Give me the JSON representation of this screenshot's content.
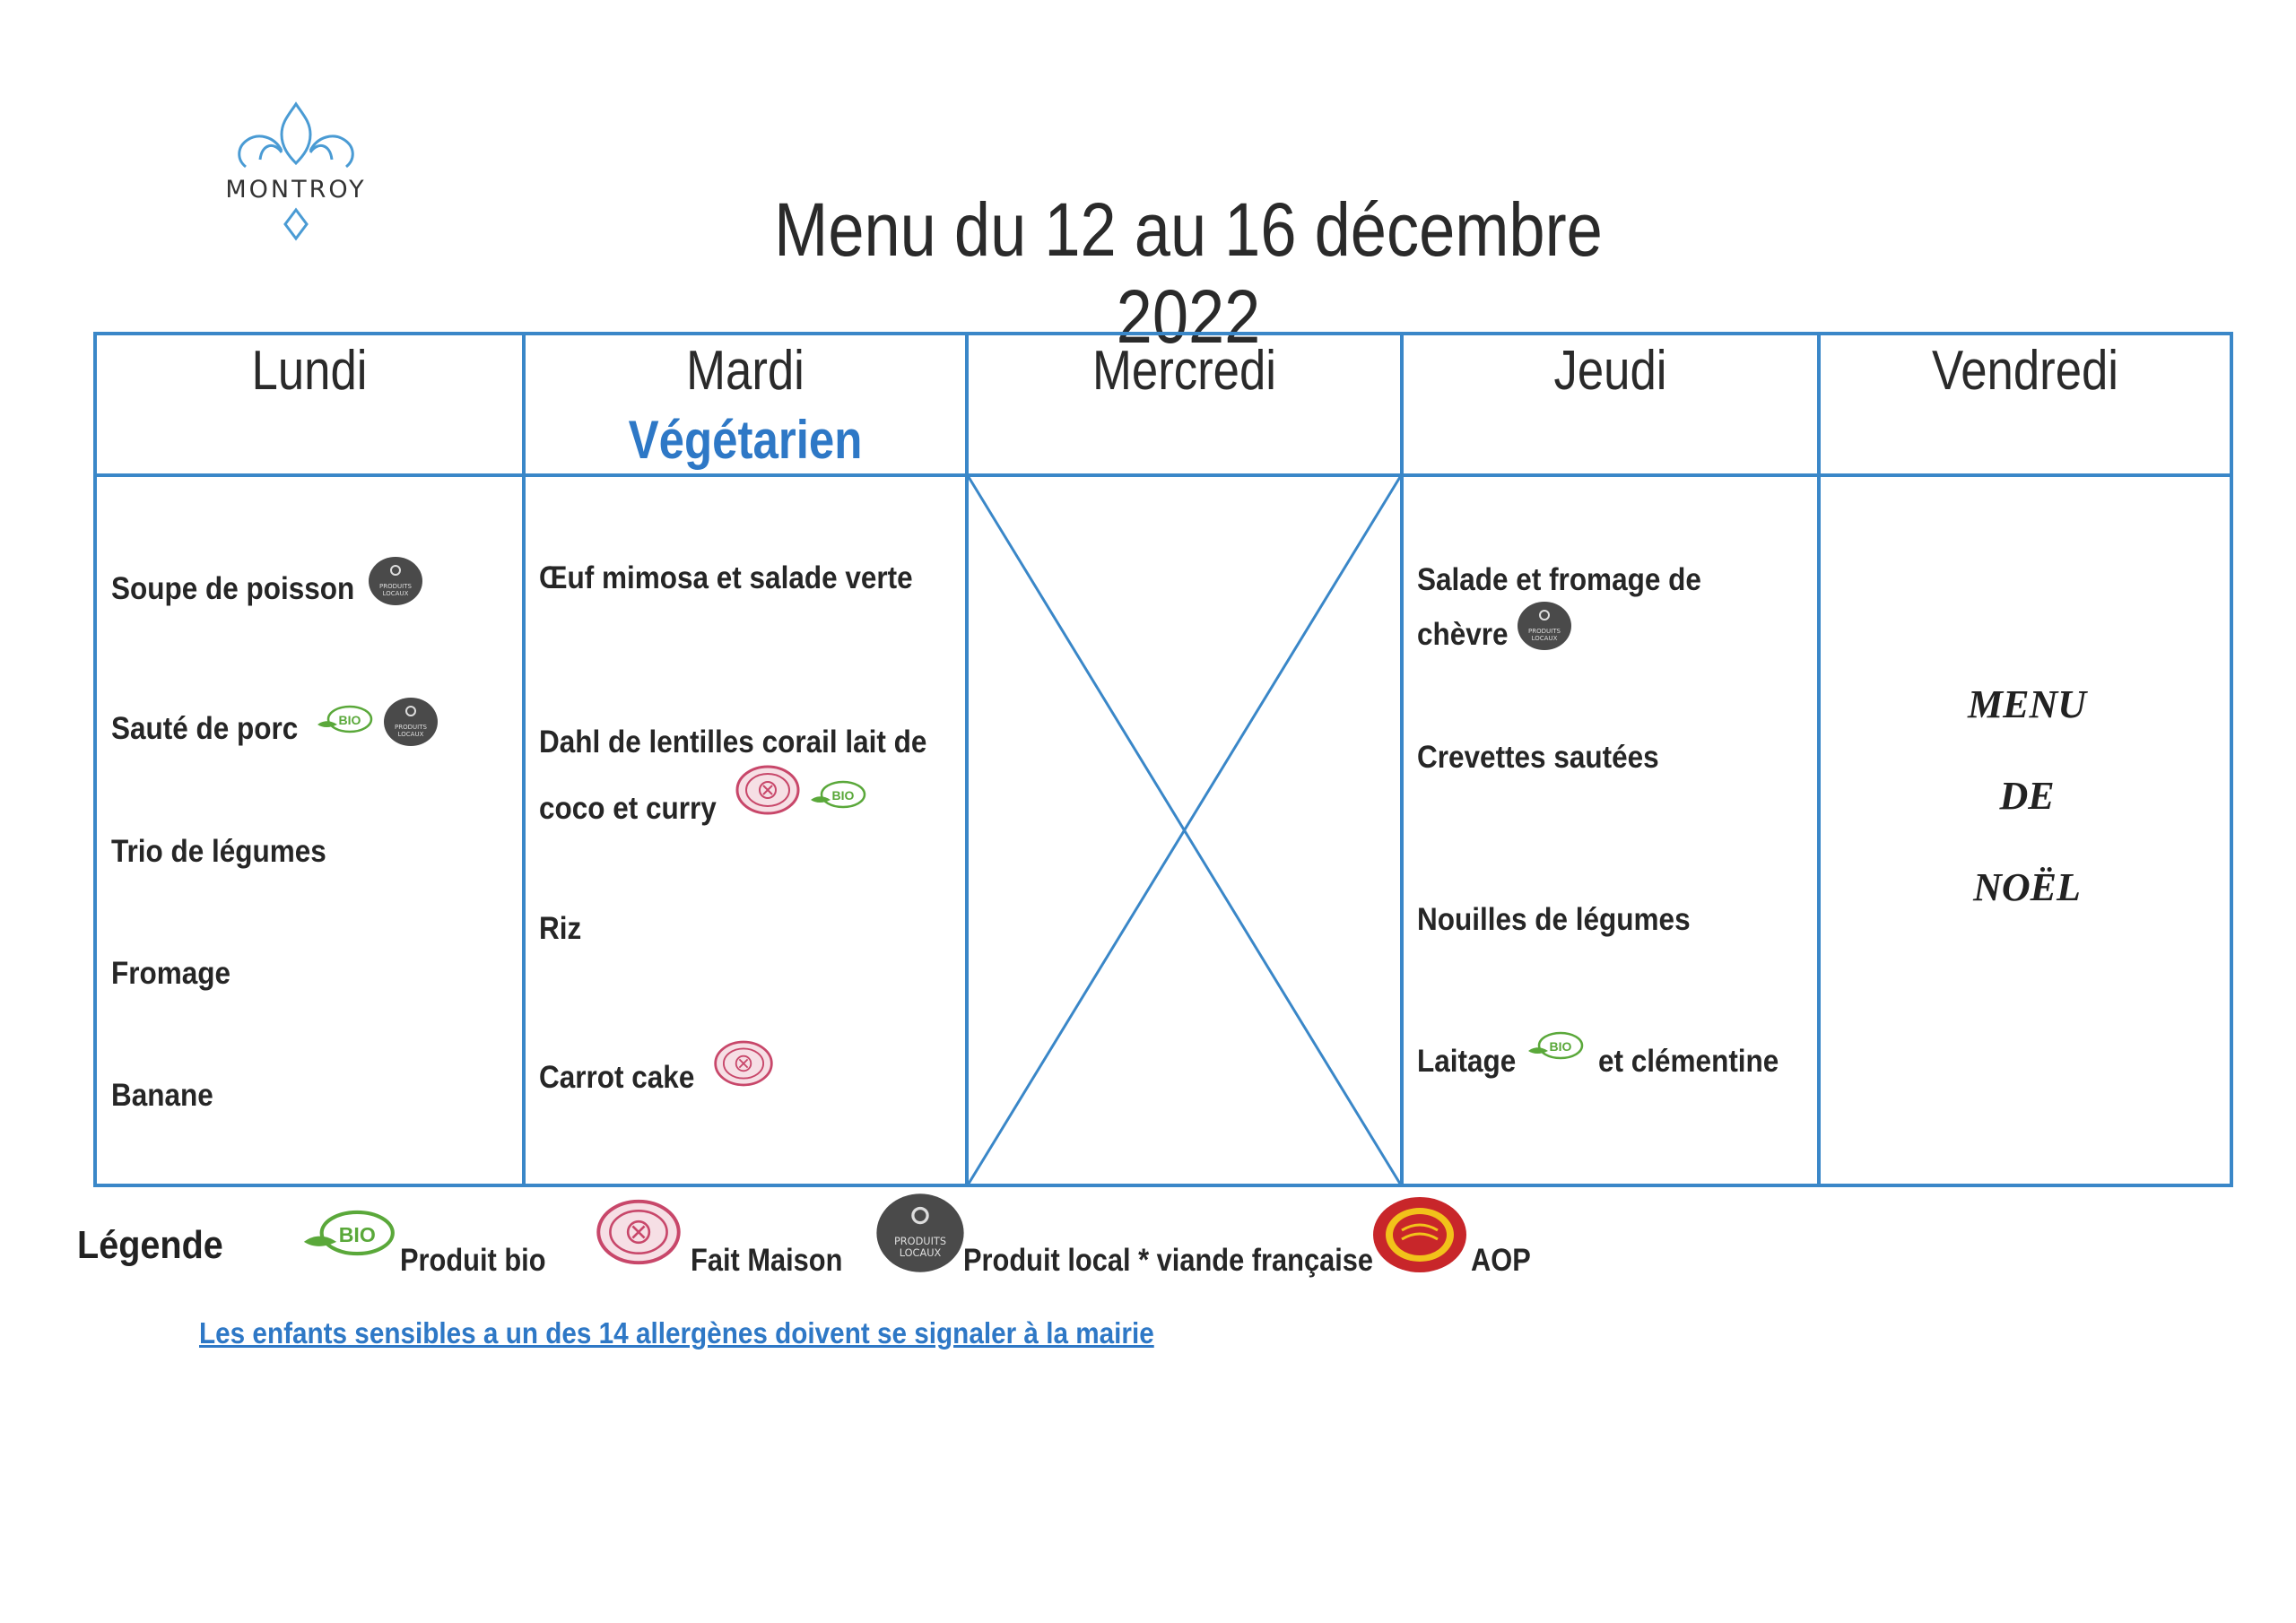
{
  "header": {
    "logo_text": "MONTROY",
    "title": "Menu du 12 au 16 décembre 2022"
  },
  "days": [
    {
      "name": "Lundi",
      "items": [
        {
          "label": "Soupe de poisson",
          "badges": [
            "local"
          ]
        },
        {
          "label": "Sauté de porc",
          "badges": [
            "bio",
            "local"
          ]
        },
        {
          "label": "Trio de légumes",
          "badges": []
        },
        {
          "label": "Fromage",
          "badges": []
        },
        {
          "label": "Banane",
          "badges": []
        }
      ]
    },
    {
      "name": "Mardi",
      "subtitle": "Végétarien",
      "items": [
        {
          "label": "Œuf mimosa et salade verte",
          "badges": []
        },
        {
          "label": "Dahl de lentilles corail lait de",
          "badges": []
        },
        {
          "label": "coco et curry",
          "badges": [
            "fait-maison",
            "bio"
          ]
        },
        {
          "label": "Riz",
          "badges": []
        },
        {
          "label": "Carrot cake",
          "badges": [
            "fait-maison"
          ]
        }
      ]
    },
    {
      "name": "Mercredi",
      "items": []
    },
    {
      "name": "Jeudi",
      "items": [
        {
          "label": "Salade et fromage de",
          "badges": []
        },
        {
          "label": "chèvre",
          "badges": [
            "local"
          ]
        },
        {
          "label": "Crevettes sautées",
          "badges": []
        },
        {
          "label": "Nouilles de légumes",
          "badges": []
        },
        {
          "label": "Laitage",
          "badges": [
            "bio"
          ]
        },
        {
          "label": "et clémentine",
          "badges": []
        }
      ]
    },
    {
      "name": "Vendredi",
      "special": [
        "MENU",
        "DE",
        "NOËL"
      ]
    }
  ],
  "legend": {
    "title": "Légende",
    "entries": [
      {
        "icon": "bio-icon",
        "label": "Produit bio"
      },
      {
        "icon": "fait-maison-icon",
        "label": "Fait Maison"
      },
      {
        "icon": "produits-locaux-icon",
        "label": "Produit local",
        "extra": "* viande française"
      },
      {
        "icon": "aop-icon",
        "label": "AOP"
      }
    ]
  },
  "badge_text": {
    "bio": "BIO",
    "local_line1": "PRODUITS",
    "local_line2": "LOCAUX"
  },
  "notice": "Les enfants sensibles a un des 14 allergènes doivent se signaler à la mairie",
  "colors": {
    "border": "#3a87c8",
    "accent_blue": "#2e78c6",
    "bio_green": "#5aa83a",
    "fait_maison": "#c8476a",
    "local_grey": "#4a4a4a",
    "aop_red": "#c8262a",
    "aop_yellow": "#f2c21a"
  }
}
